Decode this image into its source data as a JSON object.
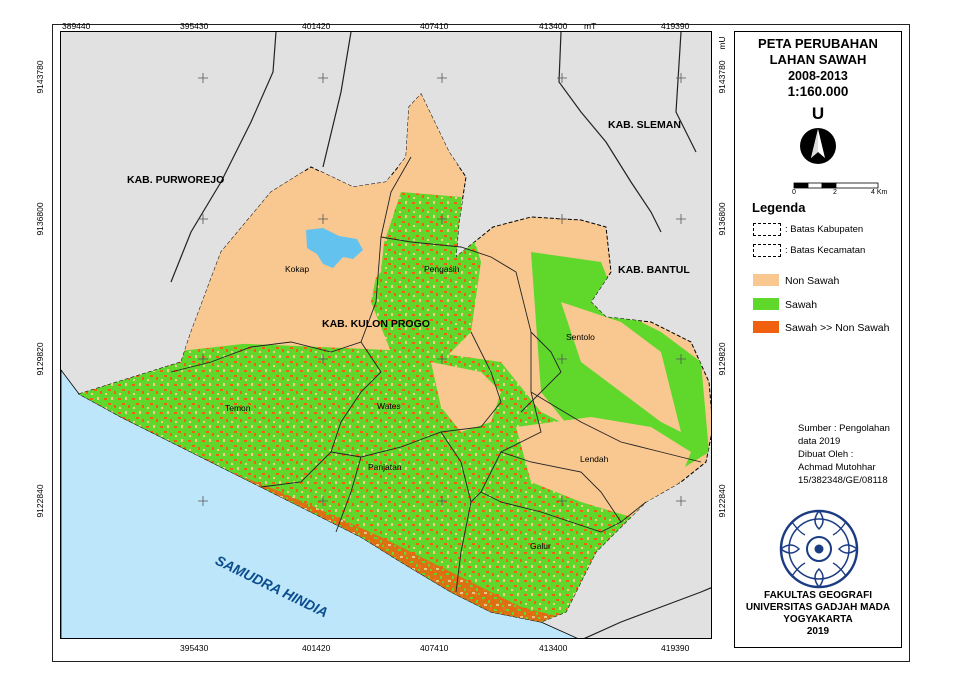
{
  "map": {
    "coords_top": [
      "389440",
      "395430",
      "401420",
      "407410",
      "413400",
      "419390"
    ],
    "coords_bottom": [
      "395430",
      "401420",
      "407410",
      "413400",
      "419390"
    ],
    "unit_east": "mT",
    "unit_north": "mU",
    "coords_left": [
      "9143780",
      "9136800",
      "9129820",
      "9122840"
    ],
    "coords_right": [
      "9143780",
      "9136800",
      "9129820",
      "9122840"
    ],
    "regency_labels": {
      "purworejo": "KAB. PURWOREJO",
      "sleman": "KAB. SLEMAN",
      "bantul": "KAB. BANTUL",
      "kulon_progo": "KAB. KULON PROGO"
    },
    "district_labels": {
      "kokap": "Kokap",
      "pengasih": "Pengasih",
      "sentolo": "Sentolo",
      "temon": "Temon",
      "wates": "Wates",
      "panjatan": "Panjatan",
      "lendah": "Lendah",
      "galur": "Galur"
    },
    "sea_label": "SAMUDRA HINDIA",
    "colors": {
      "outside": "#e1e1e1",
      "sea": "#bde6fb",
      "non_sawah": "#f9c890",
      "sawah": "#5fd72b",
      "sawah_to_non_sawah": "#f0600f",
      "reservoir": "#64c2ee"
    }
  },
  "panel": {
    "title_line1": "PETA PERUBAHAN",
    "title_line2": "LAHAN SAWAH",
    "years": "2008-2013",
    "scale": "1:160.000",
    "north_letter": "U",
    "scalebar_ticks": [
      "0",
      "2",
      "4 Km"
    ],
    "legend_title": "Legenda",
    "legend_items": [
      {
        "label": ": Batas Kabupaten",
        "style": "dash"
      },
      {
        "label": ": Batas Kecamatan",
        "style": "dash"
      },
      {
        "label": "Non Sawah",
        "color": "#f9c890"
      },
      {
        "label": "Sawah",
        "color": "#5fd72b"
      },
      {
        "label": "Sawah >> Non Sawah",
        "color": "#f0600f"
      }
    ],
    "source_lines": [
      "Sumber : Pengolahan",
      "data 2019",
      "Dibuat Oleh :",
      "Achmad Mutohhar",
      "15/382348/GE/08118"
    ],
    "institution_lines": [
      "FAKULTAS GEOGRAFI",
      "UNIVERSITAS GADJAH MADA",
      "YOGYAKARTA",
      "2019"
    ]
  }
}
